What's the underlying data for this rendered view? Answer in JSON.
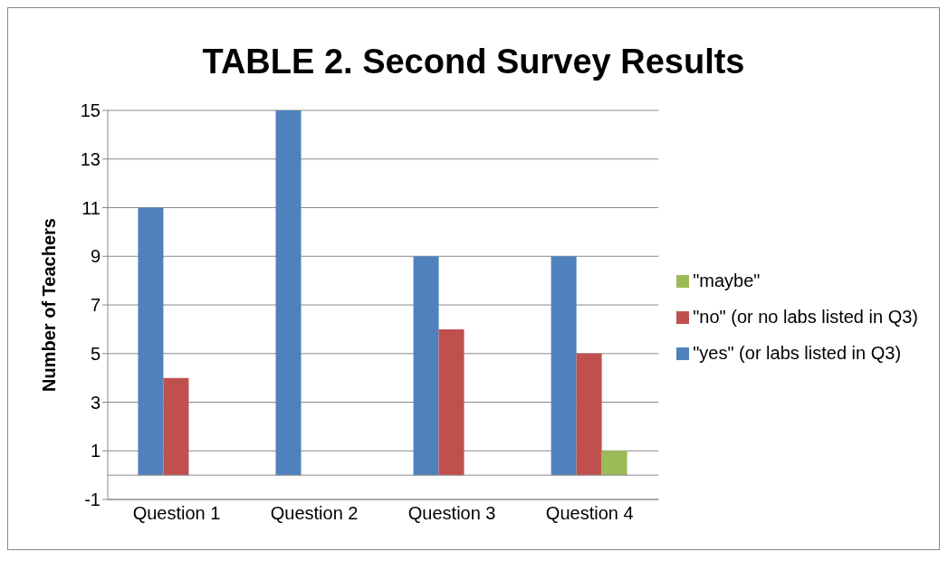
{
  "chart_data": {
    "type": "bar",
    "title": "TABLE 2. Second Survey Results",
    "ylabel": "Number of Teachers",
    "categories": [
      "Question 1",
      "Question 2",
      "Question 3",
      "Question 4"
    ],
    "series": [
      {
        "name": "\"yes\" (or labs listed in Q3)",
        "color": "#4f81bd",
        "values": [
          11,
          15,
          9,
          9
        ]
      },
      {
        "name": "\"no\" (or no labs listed in Q3)",
        "color": "#c0504d",
        "values": [
          4,
          0,
          6,
          5
        ]
      },
      {
        "name": "\"maybe\"",
        "color": "#9bbb59",
        "values": [
          0,
          0,
          0,
          1
        ]
      }
    ],
    "ylim": [
      -1,
      15
    ],
    "yticks": [
      -1,
      1,
      3,
      5,
      7,
      9,
      11,
      13,
      15
    ],
    "grid": "y",
    "legend": "right"
  }
}
